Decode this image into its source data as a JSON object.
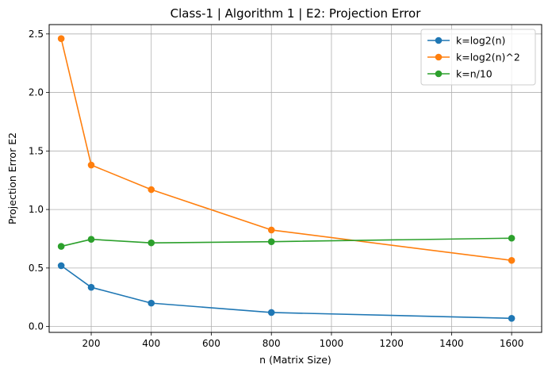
{
  "chart_data": {
    "type": "line",
    "title": "Class-1 | Algorithm 1 | E2: Projection Error",
    "xlabel": "n (Matrix Size)",
    "ylabel": "Projection Error E2",
    "xlim": [
      60,
      1700
    ],
    "ylim": [
      -0.05,
      2.58
    ],
    "xticks": [
      200,
      400,
      600,
      800,
      1000,
      1200,
      1400,
      1600
    ],
    "yticks": [
      0.0,
      0.5,
      1.0,
      1.5,
      2.0,
      2.5
    ],
    "xtick_labels": [
      "200",
      "400",
      "600",
      "800",
      "1000",
      "1200",
      "1400",
      "1600"
    ],
    "ytick_labels": [
      "0.0",
      "0.5",
      "1.0",
      "1.5",
      "2.0",
      "2.5"
    ],
    "grid": true,
    "legend_position": "top-right",
    "x": [
      100,
      200,
      400,
      800,
      1600
    ],
    "series": [
      {
        "name": "k=log2(n)",
        "color": "#1f77b4",
        "values": [
          0.52,
          0.335,
          0.2,
          0.12,
          0.07
        ]
      },
      {
        "name": "k=log2(n)^2",
        "color": "#ff7f0e",
        "values": [
          2.46,
          1.38,
          1.17,
          0.825,
          0.565
        ]
      },
      {
        "name": "k=n/10",
        "color": "#2ca02c",
        "values": [
          0.685,
          0.745,
          0.715,
          0.725,
          0.755
        ]
      }
    ]
  }
}
